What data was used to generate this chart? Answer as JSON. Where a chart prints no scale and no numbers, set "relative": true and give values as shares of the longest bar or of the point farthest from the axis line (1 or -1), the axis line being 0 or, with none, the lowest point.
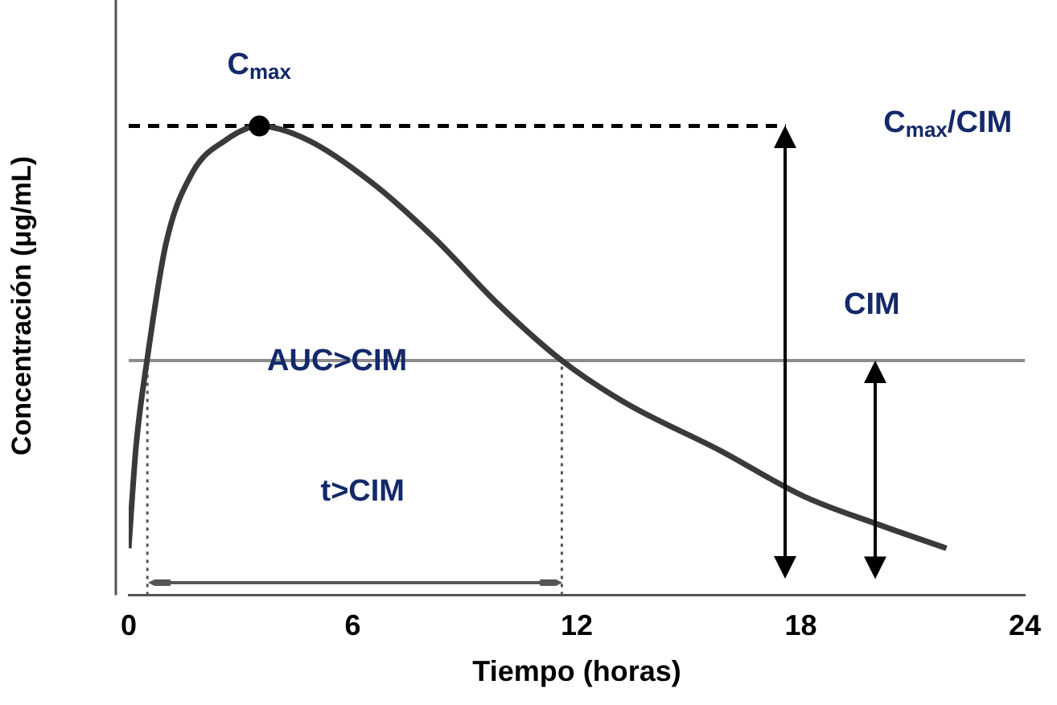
{
  "chart_data": {
    "type": "line",
    "relative": true,
    "xlabel": "Tiempo (horas)",
    "ylabel": "Concentración (μg/mL)",
    "x": [
      0,
      0.2,
      0.49,
      1.0,
      1.7,
      2.6,
      3.5,
      4.8,
      6.5,
      8.2,
      9.9,
      11.6,
      13.3,
      15.8,
      18.1,
      20.1,
      21.9
    ],
    "series": [
      {
        "color": "#3a3a3a",
        "values": [
          0.1,
          0.32,
          0.5,
          0.75,
          0.9,
          0.97,
          1.0,
          0.97,
          0.88,
          0.76,
          0.62,
          0.5,
          0.41,
          0.31,
          0.21,
          0.15,
          0.1
        ]
      },
      {
        "type": "scatter",
        "color": "#000000",
        "x": [
          3.5
        ],
        "values": [
          1.0
        ],
        "marker": "circle"
      }
    ],
    "xlim": [
      0,
      24
    ],
    "xticks": [
      0,
      6,
      12,
      18,
      24
    ],
    "grid": false,
    "legend": false,
    "marker": "none",
    "ref_lines": [
      {
        "axis": "y",
        "value": 1.0,
        "color": "#000000",
        "line_style": "dashed"
      },
      {
        "axis": "y",
        "value": 0.5,
        "color": "#8c8c8c",
        "line_style": "solid"
      },
      {
        "axis": "x",
        "value": 0.5,
        "color": "#555555",
        "line_style": "dotted"
      },
      {
        "axis": "x",
        "value": 11.6,
        "color": "#555555",
        "line_style": "dotted"
      }
    ],
    "annotations": [
      {
        "text": "C$_{max}$",
        "x": 3.5,
        "y": 1.0
      },
      "C$_{max}$/CIM",
      "AUC>CIM",
      {
        "text": "CIM",
        "x": 19.8,
        "y": 0.5
      },
      "t>CIM"
    ]
  }
}
